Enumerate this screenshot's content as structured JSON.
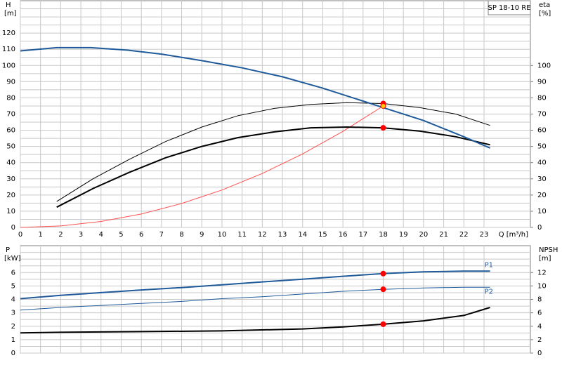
{
  "chart_data": [
    {
      "type": "line",
      "title": "SP 18-10 RE",
      "ylabel": "H",
      "ylabel_unit": "[m]",
      "y2label": "eta",
      "y2label_unit": "[%]",
      "xlabel": "Q [m³/h]",
      "xlim": [
        0,
        25.3
      ],
      "xticks": [
        0,
        1,
        2,
        3,
        4,
        5,
        6,
        7,
        8,
        9,
        10,
        11,
        12,
        13,
        14,
        15,
        16,
        17,
        18,
        19,
        20,
        21,
        22,
        23
      ],
      "ylim": [
        0,
        140
      ],
      "yticks": [
        0,
        10,
        20,
        30,
        40,
        50,
        60,
        70,
        80,
        90,
        100,
        110,
        120
      ],
      "y2lim": [
        0,
        140
      ],
      "y2ticks": [
        0,
        10,
        20,
        30,
        40,
        50,
        60,
        70,
        80,
        90,
        100
      ],
      "grid": true,
      "series": [
        {
          "color": "#ff5050",
          "width": 1,
          "x": [
            0,
            2,
            4,
            6,
            8,
            10,
            12,
            14,
            16,
            18
          ],
          "values": [
            0,
            0.9,
            3.7,
            8.3,
            14.8,
            23.1,
            33.3,
            45.4,
            59.3,
            75
          ]
        },
        {
          "color": "#000000",
          "width": 1,
          "axis": "y2",
          "x": [
            1.8,
            3.6,
            5.4,
            7.2,
            9,
            10.8,
            12.6,
            14.4,
            16.2,
            18,
            19.8,
            21.6,
            23.3
          ],
          "values": [
            16,
            30,
            42,
            53,
            62,
            69,
            73.5,
            76,
            77,
            76.5,
            74,
            70,
            63
          ]
        },
        {
          "color": "#000000",
          "width": 2,
          "axis": "y2",
          "x": [
            1.8,
            3.6,
            5.4,
            7.2,
            9,
            10.8,
            12.6,
            14.4,
            16.2,
            18,
            19.8,
            21.6,
            23.3
          ],
          "values": [
            12.5,
            24,
            34,
            43,
            50,
            55.5,
            59,
            61.5,
            62,
            61.5,
            59.5,
            56,
            51
          ]
        },
        {
          "color": "#1f5a9a",
          "width": 2,
          "x": [
            0,
            1.8,
            3.5,
            5.3,
            7,
            9,
            11,
            13,
            15,
            17,
            18,
            20,
            22,
            23.3
          ],
          "values": [
            109,
            111,
            111,
            109.5,
            107,
            103,
            98.5,
            93,
            86,
            78,
            74,
            66,
            56,
            49
          ]
        },
        {
          "color": "#ff0000",
          "mode": "markers",
          "x": [
            18
          ],
          "values": [
            76.5
          ]
        },
        {
          "color": "#ff0000",
          "mode": "markers",
          "axis": "y2",
          "x": [
            18
          ],
          "values": [
            61.5
          ]
        },
        {
          "color": "#ffcc00",
          "mode": "markers",
          "x": [
            18
          ],
          "values": [
            75
          ]
        }
      ]
    },
    {
      "type": "line",
      "ylabel": "P",
      "ylabel_unit": "[kW]",
      "y2label": "NPSH",
      "y2label_unit": "[m]",
      "xlim": [
        0,
        25.3
      ],
      "xticks": [
        0,
        1,
        2,
        3,
        4,
        5,
        6,
        7,
        8,
        9,
        10,
        11,
        12,
        13,
        14,
        15,
        16,
        17,
        18,
        19,
        20,
        21,
        22,
        23
      ],
      "xtick_labels": false,
      "ylim": [
        0,
        8
      ],
      "yticks": [
        0,
        1,
        2,
        3,
        4,
        5,
        6
      ],
      "y2lim": [
        0,
        16
      ],
      "y2ticks": [
        0,
        2,
        4,
        6,
        8,
        10,
        12
      ],
      "grid": true,
      "series": [
        {
          "name": "P1",
          "color": "#1f5a9a",
          "width": 2,
          "x": [
            0,
            2,
            4,
            6,
            8,
            10,
            12,
            14,
            16,
            18,
            20,
            22,
            23.3
          ],
          "values": [
            4.05,
            4.3,
            4.5,
            4.7,
            4.88,
            5.08,
            5.3,
            5.5,
            5.72,
            5.92,
            6.05,
            6.1,
            6.1
          ]
        },
        {
          "name": "P2",
          "color": "#1f5a9a",
          "width": 1,
          "x": [
            0,
            2,
            4,
            6,
            8,
            10,
            12,
            14,
            16,
            18,
            20,
            22,
            23.3
          ],
          "values": [
            3.2,
            3.4,
            3.55,
            3.7,
            3.85,
            4.05,
            4.2,
            4.4,
            4.6,
            4.75,
            4.85,
            4.9,
            4.9
          ]
        },
        {
          "color": "#000000",
          "width": 2,
          "axis": "y2",
          "x": [
            0,
            2,
            6,
            10,
            14,
            16,
            18,
            20,
            22,
            23.3
          ],
          "values": [
            3.0,
            3.1,
            3.2,
            3.3,
            3.6,
            3.9,
            4.3,
            4.8,
            5.6,
            6.8
          ]
        },
        {
          "color": "#ff0000",
          "mode": "markers",
          "x": [
            18
          ],
          "values": [
            5.92
          ]
        },
        {
          "color": "#ff0000",
          "mode": "markers",
          "x": [
            18
          ],
          "values": [
            4.75
          ]
        },
        {
          "color": "#ff0000",
          "mode": "markers",
          "axis": "y2",
          "x": [
            18
          ],
          "values": [
            4.3
          ]
        }
      ]
    }
  ]
}
